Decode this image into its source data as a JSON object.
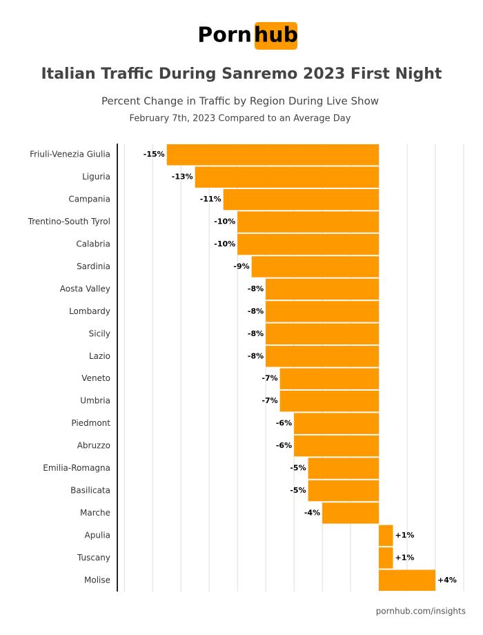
{
  "logo": {
    "left": "Porn",
    "right": "hub"
  },
  "chart_data": {
    "type": "bar",
    "orientation": "horizontal",
    "title": "Italian Traffic During Sanremo 2023 First Night",
    "subtitle": "Percent Change in Traffic by Region During Live Show",
    "caption": "February 7th, 2023 Compared to an Average Day",
    "categories": [
      "Friuli-Venezia Giulia",
      "Liguria",
      "Campania",
      "Trentino-South Tyrol",
      "Calabria",
      "Sardinia",
      "Aosta Valley",
      "Lombardy",
      "Sicily",
      "Lazio",
      "Veneto",
      "Umbria",
      "Piedmont",
      "Abruzzo",
      "Emilia-Romagna",
      "Basilicata",
      "Marche",
      "Apulia",
      "Tuscany",
      "Molise"
    ],
    "values": [
      -15,
      -13,
      -11,
      -10,
      -10,
      -9,
      -8,
      -8,
      -8,
      -8,
      -7,
      -7,
      -6,
      -6,
      -5,
      -5,
      -4,
      1,
      1,
      4
    ],
    "value_labels": [
      "-15%",
      "-13%",
      "-11%",
      "-10%",
      "-10%",
      "-9%",
      "-8%",
      "-8%",
      "-8%",
      "-8%",
      "-7%",
      "-7%",
      "-6%",
      "-6%",
      "-5%",
      "-5%",
      "-4%",
      "+1%",
      "+1%",
      "+4%"
    ],
    "color": "#ff9900",
    "xlim": [
      -18.5,
      6
    ],
    "xticks": [
      -18,
      -16,
      -14,
      -12,
      -10,
      -8,
      -6,
      -4,
      -2,
      0,
      2,
      4,
      6
    ],
    "grid": true
  },
  "footer": "pornhub.com/insights"
}
